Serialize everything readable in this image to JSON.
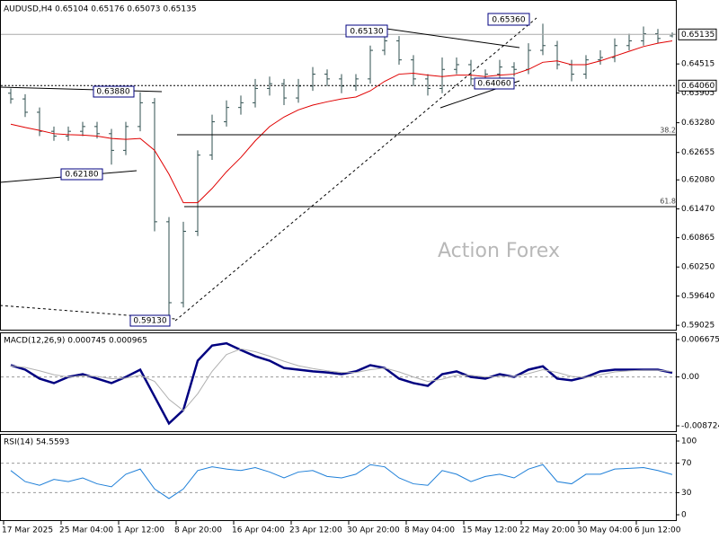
{
  "chart_data": [
    {
      "type": "ohlc",
      "title": "AUDUSD,H4  0.65104 0.65176 0.65073 0.65135",
      "color": "#2f4f4f",
      "ma_color": "#e00000",
      "categories": [
        "17 Mar 2025",
        null,
        null,
        null,
        "25 Mar 04:00",
        null,
        null,
        null,
        "1 Apr 12:00",
        null,
        null,
        null,
        "8 Apr 20:00",
        null,
        null,
        null,
        "16 Apr 04:00",
        null,
        null,
        null,
        "23 Apr 12:00",
        null,
        null,
        null,
        "30 Apr 20:00",
        null,
        null,
        null,
        "8 May 04:00",
        null,
        null,
        null,
        "15 May 12:00",
        null,
        null,
        null,
        "22 May 20:00",
        null,
        null,
        null,
        "30 May 04:00",
        null,
        null,
        null,
        "6 Jun 12:00",
        null,
        null
      ],
      "ohlc": [
        [
          0.639,
          0.64,
          0.6368,
          0.6378
        ],
        [
          0.6378,
          0.6388,
          0.634,
          0.635
        ],
        [
          0.635,
          0.636,
          0.63,
          0.631
        ],
        [
          0.631,
          0.632,
          0.629,
          0.63
        ],
        [
          0.63,
          0.632,
          0.629,
          0.631
        ],
        [
          0.631,
          0.633,
          0.63,
          0.632
        ],
        [
          0.632,
          0.633,
          0.6295,
          0.6305
        ],
        [
          0.6305,
          0.6315,
          0.624,
          0.627
        ],
        [
          0.627,
          0.633,
          0.626,
          0.632
        ],
        [
          0.632,
          0.6392,
          0.631,
          0.637
        ],
        [
          0.637,
          0.638,
          0.61,
          0.612
        ],
        [
          0.612,
          0.613,
          0.5913,
          0.595
        ],
        [
          0.595,
          0.612,
          0.594,
          0.61
        ],
        [
          0.61,
          0.627,
          0.609,
          0.626
        ],
        [
          0.626,
          0.6345,
          0.625,
          0.633
        ],
        [
          0.633,
          0.6375,
          0.632,
          0.636
        ],
        [
          0.636,
          0.6385,
          0.6345,
          0.637
        ],
        [
          0.637,
          0.642,
          0.636,
          0.64
        ],
        [
          0.64,
          0.6425,
          0.6385,
          0.641
        ],
        [
          0.641,
          0.642,
          0.6365,
          0.638
        ],
        [
          0.638,
          0.642,
          0.637,
          0.6405
        ],
        [
          0.6405,
          0.6445,
          0.6395,
          0.643
        ],
        [
          0.643,
          0.644,
          0.6405,
          0.642
        ],
        [
          0.642,
          0.643,
          0.639,
          0.6405
        ],
        [
          0.6405,
          0.643,
          0.6395,
          0.642
        ],
        [
          0.642,
          0.649,
          0.641,
          0.648
        ],
        [
          0.648,
          0.6513,
          0.647,
          0.65
        ],
        [
          0.65,
          0.651,
          0.645,
          0.646
        ],
        [
          0.646,
          0.647,
          0.6405,
          0.642
        ],
        [
          0.642,
          0.643,
          0.6385,
          0.64
        ],
        [
          0.64,
          0.6465,
          0.639,
          0.644
        ],
        [
          0.644,
          0.6465,
          0.643,
          0.645
        ],
        [
          0.645,
          0.646,
          0.6406,
          0.642
        ],
        [
          0.642,
          0.644,
          0.641,
          0.643
        ],
        [
          0.643,
          0.646,
          0.642,
          0.6445
        ],
        [
          0.6445,
          0.6455,
          0.6425,
          0.644
        ],
        [
          0.644,
          0.6495,
          0.643,
          0.648
        ],
        [
          0.648,
          0.6536,
          0.647,
          0.649
        ],
        [
          0.649,
          0.65,
          0.644,
          0.645
        ],
        [
          0.645,
          0.646,
          0.6415,
          0.643
        ],
        [
          0.643,
          0.647,
          0.642,
          0.646
        ],
        [
          0.646,
          0.648,
          0.645,
          0.6465
        ],
        [
          0.6465,
          0.6505,
          0.6455,
          0.649
        ],
        [
          0.649,
          0.6515,
          0.648,
          0.65
        ],
        [
          0.65,
          0.653,
          0.649,
          0.6515
        ],
        [
          0.6515,
          0.6525,
          0.6495,
          0.6505
        ],
        [
          0.65104,
          0.65176,
          0.65073,
          0.65135
        ]
      ],
      "ma_values": [
        0.6325,
        0.6318,
        0.6312,
        0.6305,
        0.6303,
        0.6302,
        0.63,
        0.6295,
        0.6293,
        0.6295,
        0.627,
        0.622,
        0.616,
        0.616,
        0.619,
        0.6225,
        0.6255,
        0.629,
        0.632,
        0.634,
        0.6355,
        0.6365,
        0.6372,
        0.6378,
        0.6382,
        0.6395,
        0.6415,
        0.643,
        0.6432,
        0.6428,
        0.6425,
        0.6428,
        0.6428,
        0.6425,
        0.6428,
        0.643,
        0.644,
        0.6455,
        0.6458,
        0.645,
        0.645,
        0.6458,
        0.6468,
        0.6478,
        0.6488,
        0.6495,
        0.65
      ],
      "ylim": [
        0.5899,
        0.6582
      ],
      "yticks": [
        0.64515,
        0.63905,
        {
          "value": 0.6328,
          "label": "0.63280"
        },
        0.62655,
        {
          "value": 0.6208,
          "label": "0.62080"
        },
        {
          "value": 0.6147,
          "label": "0.61470"
        },
        0.60865,
        {
          "value": 0.6025,
          "label": "0.60250"
        },
        {
          "value": 0.5964,
          "label": "0.59640"
        },
        0.59025
      ],
      "price_labels": [
        0.65135,
        {
          "value": 0.6406,
          "label": "0.64060"
        }
      ],
      "annotations": [
        "0.65130",
        "0.63880",
        "0.62180",
        "0.59130",
        "0.65360",
        "0.64060",
        "38.2",
        "61.8",
        "Action Forex"
      ]
    },
    {
      "type": "line",
      "title": "MACD(12,26,9) 0.000745 0.000965",
      "series": [
        {
          "color": "#000080",
          "values": [
            0.0021,
            0.0013,
            -0.0003,
            -0.0011,
            0,
            0.0005,
            -0.0003,
            -0.0011,
            0,
            0.0013,
            -0.0035,
            -0.0083,
            -0.0059,
            0.0029,
            0.0056,
            0.006,
            0.0048,
            0.0037,
            0.0029,
            0.0016,
            0.0013,
            0.001,
            0.0008,
            0.0005,
            0.001,
            0.0021,
            0.0016,
            -0.0003,
            -0.0011,
            -0.0016,
            0.0005,
            0.001,
            0,
            -0.0003,
            0.0005,
            0,
            0.0013,
            0.0019,
            -0.0003,
            -0.0006,
            0,
            0.001,
            0.0013,
            0.0013,
            0.0013,
            0.0013,
            0.000745
          ]
        },
        {
          "color": "#b0b0b0",
          "values": [
            0.002,
            0.0017,
            0.0011,
            0.0004,
            0,
            0.0002,
            0.0001,
            -0.0003,
            -0.0002,
            0.0003,
            -0.0008,
            -0.004,
            -0.006,
            -0.003,
            0.001,
            0.004,
            0.005,
            0.0045,
            0.0037,
            0.0028,
            0.002,
            0.0015,
            0.0011,
            0.0008,
            0.0008,
            0.0013,
            0.0016,
            0.0009,
            0,
            -0.0008,
            -0.0004,
            0.0003,
            0.0003,
            0,
            0.0001,
            0.0001,
            0.0006,
            0.0013,
            0.0008,
            0.0001,
            -0.0001,
            0.0004,
            0.0009,
            0.0011,
            0.0012,
            0.0012,
            0.000965
          ]
        }
      ],
      "ylim": [
        -0.00968,
        0.00779
      ],
      "yticks": [
        0.006675,
        {
          "value": 0,
          "label": "0.00"
        },
        -0.008724
      ],
      "levels": [
        0
      ]
    },
    {
      "type": "line",
      "title": "RSI(14) 54.5593",
      "series": [
        {
          "color": "#1e7fd8",
          "values": [
            60,
            45,
            40,
            48,
            45,
            50,
            42,
            38,
            55,
            62,
            35,
            22,
            35,
            60,
            65,
            62,
            60,
            64,
            58,
            50,
            58,
            60,
            52,
            50,
            55,
            68,
            65,
            50,
            42,
            40,
            60,
            55,
            45,
            52,
            55,
            50,
            62,
            68,
            45,
            42,
            55,
            55,
            62,
            63,
            64,
            60,
            54.5593
          ]
        }
      ],
      "ylim": [
        -8.5,
        108.5
      ],
      "yticks": [
        100,
        70,
        30,
        0
      ],
      "levels": [
        70,
        30
      ]
    }
  ]
}
